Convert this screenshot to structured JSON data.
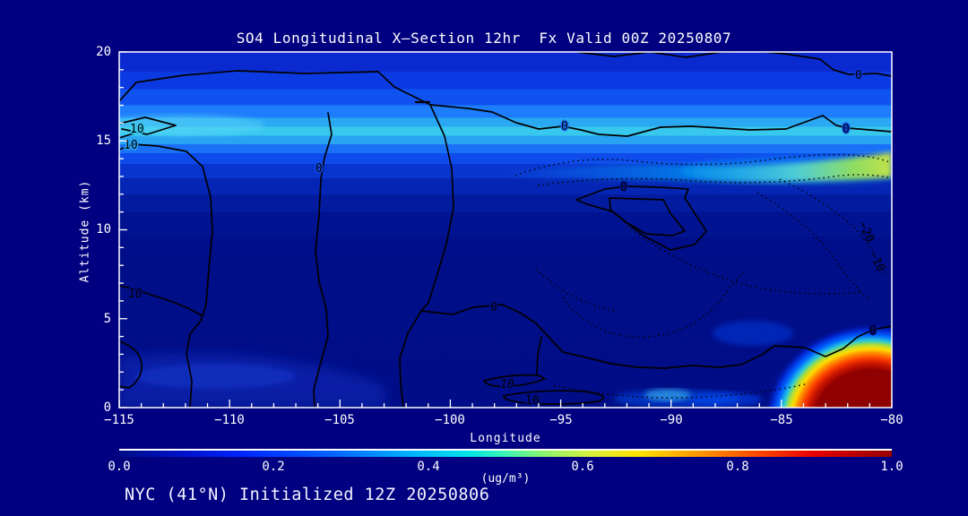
{
  "page": {
    "background": "#000080",
    "frame_color": "#ffffff",
    "contour_color": "#000000"
  },
  "title": "SO4 Longitudinal X—Section 12hr  Fx Valid 00Z 20250807",
  "footer": "NYC (41°N) Initialized 12Z 20250806",
  "axes": {
    "x": {
      "label": "Longitude",
      "ticks": [
        "−115",
        "−110",
        "−105",
        "−100",
        "−95",
        "−90",
        "−85",
        "−80"
      ]
    },
    "y": {
      "label": "Altitude (km)",
      "ticks": [
        "20",
        "15",
        "10",
        "5",
        "0"
      ]
    }
  },
  "colorbar": {
    "ticks": [
      "0.0",
      "0.2",
      "0.4",
      "0.6",
      "0.8",
      "1.0"
    ],
    "units": "(ug/m³)",
    "gradient": [
      "#000d86 0%",
      "#0011c8 8%",
      "#0026ff 16%",
      "#0066ff 28%",
      "#00b4ff 38%",
      "#00e0e8 45%",
      "#3cf4b4 50%",
      "#8cf46e 55%",
      "#d8f23c 61%",
      "#ffe400 67%",
      "#ff9800 75%",
      "#ff4400 83%",
      "#e60000 90%",
      "#b40000 96%",
      "#960000 100%"
    ]
  },
  "plot": {
    "contour_labels": [
      "10",
      "10",
      "0",
      "0",
      "0",
      "0",
      "0",
      "0",
      "10",
      "10",
      "10",
      "0",
      "−20",
      "−10"
    ]
  },
  "chart_data": {
    "type": "heatmap",
    "title": "SO4 Longitudinal X—Section 12hr  Fx Valid 00Z 20250807",
    "subtitle": "NYC (41°N) Initialized 12Z 20250806",
    "xlabel": "Longitude",
    "ylabel": "Altitude (km)",
    "xlim": [
      -115,
      -80
    ],
    "ylim": [
      0,
      20
    ],
    "colorbar_range": [
      0.0,
      1.0
    ],
    "colorbar_ticks": [
      0.0,
      0.2,
      0.4,
      0.6,
      0.8,
      1.0
    ],
    "units": "ug/m³",
    "x": [
      -115,
      -110,
      -105,
      -100,
      -95,
      -90,
      -85,
      -80
    ],
    "y_altitude_km": [
      0,
      2.5,
      5,
      7.5,
      10,
      12.5,
      15,
      17.5,
      20
    ],
    "values_ug_m3_rows_bottom_to_top": [
      [
        0.1,
        0.12,
        0.1,
        0.08,
        0.1,
        0.12,
        0.15,
        1.0
      ],
      [
        0.1,
        0.1,
        0.08,
        0.07,
        0.07,
        0.08,
        0.12,
        0.6
      ],
      [
        0.08,
        0.08,
        0.07,
        0.06,
        0.06,
        0.06,
        0.07,
        0.08
      ],
      [
        0.08,
        0.08,
        0.07,
        0.06,
        0.06,
        0.07,
        0.07,
        0.08
      ],
      [
        0.1,
        0.1,
        0.08,
        0.08,
        0.08,
        0.1,
        0.1,
        0.12
      ],
      [
        0.18,
        0.16,
        0.15,
        0.15,
        0.18,
        0.25,
        0.32,
        0.55
      ],
      [
        0.42,
        0.4,
        0.36,
        0.34,
        0.3,
        0.3,
        0.32,
        0.35
      ],
      [
        0.22,
        0.22,
        0.2,
        0.2,
        0.18,
        0.16,
        0.18,
        0.2
      ],
      [
        0.15,
        0.15,
        0.14,
        0.13,
        0.12,
        0.12,
        0.1,
        0.12
      ]
    ],
    "overlaid_contours": {
      "solid_levels_labeled": [
        0,
        10
      ],
      "dotted_levels_labeled": [
        -10,
        -20
      ],
      "note": "black line contours overlaid on shading; dotted lines are negative values clustered between -100 and -80 longitude"
    },
    "max_feature": {
      "longitude": [
        -83.5,
        -80
      ],
      "altitude_km": [
        0,
        2.5
      ],
      "value": ">= 1.0 (dark red core)"
    },
    "secondary_feature": {
      "longitude": [
        -86,
        -80
      ],
      "altitude_km": [
        13,
        14.5
      ],
      "value": "0.4–0.6 cyan-green streak at right edge"
    },
    "background_band": {
      "altitude_km": [
        14.5,
        15.5
      ],
      "value": "0.35–0.45 cyan layer across domain"
    }
  }
}
